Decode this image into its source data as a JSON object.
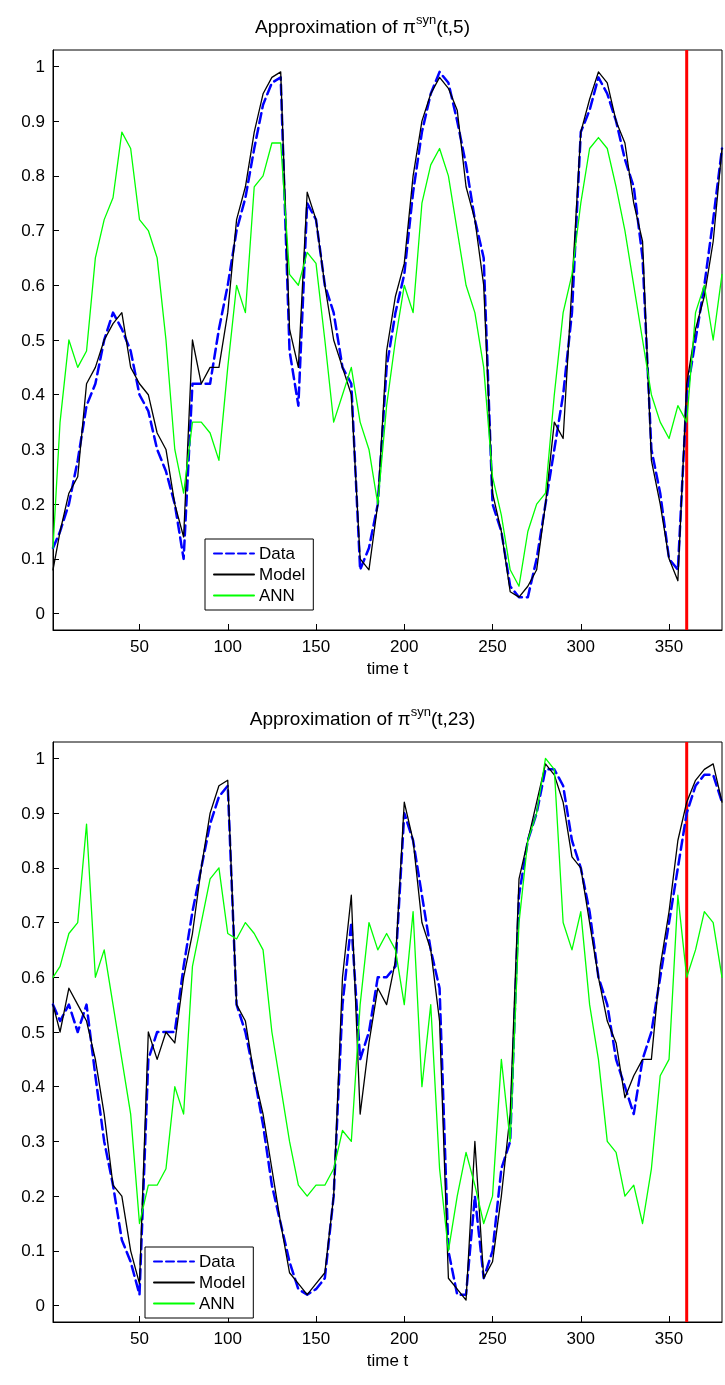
{
  "chart_data": [
    {
      "type": "line",
      "title": "Approximation of π$^{syn}$(t,5)",
      "xlabel": "time t",
      "xlim": [
        1,
        380
      ],
      "xticks": [
        50,
        100,
        150,
        200,
        250,
        300,
        350
      ],
      "ylim": [
        -0.03,
        1.03
      ],
      "yticks": [
        0,
        0.1,
        0.2,
        0.3,
        0.4,
        0.5,
        0.6,
        0.7,
        0.8,
        0.9,
        1
      ],
      "grid": false,
      "legend": "bottom left",
      "marker": "none",
      "x": [
        1,
        5,
        10,
        15,
        20,
        25,
        30,
        35,
        40,
        45,
        50,
        55,
        60,
        65,
        70,
        75,
        80,
        85,
        90,
        95,
        100,
        105,
        110,
        115,
        120,
        125,
        130,
        135,
        140,
        145,
        150,
        155,
        160,
        165,
        170,
        175,
        180,
        185,
        190,
        195,
        200,
        205,
        210,
        215,
        220,
        225,
        230,
        235,
        240,
        245,
        250,
        255,
        260,
        265,
        270,
        275,
        280,
        285,
        290,
        295,
        300,
        305,
        310,
        315,
        320,
        325,
        330,
        335,
        340,
        345,
        350,
        355,
        360,
        365,
        370,
        375,
        380
      ],
      "series": [
        {
          "name": "Data",
          "color": "#0000ff",
          "line_style": "dashed",
          "values": [
            0.12,
            0.15,
            0.2,
            0.28,
            0.38,
            0.42,
            0.5,
            0.55,
            0.52,
            0.48,
            0.4,
            0.37,
            0.3,
            0.26,
            0.2,
            0.1,
            0.42,
            0.42,
            0.42,
            0.52,
            0.6,
            0.7,
            0.76,
            0.85,
            0.93,
            0.97,
            0.98,
            0.48,
            0.38,
            0.75,
            0.72,
            0.6,
            0.55,
            0.45,
            0.42,
            0.08,
            0.12,
            0.2,
            0.45,
            0.55,
            0.62,
            0.77,
            0.88,
            0.95,
            0.99,
            0.97,
            0.9,
            0.82,
            0.72,
            0.65,
            0.2,
            0.15,
            0.05,
            0.03,
            0.03,
            0.1,
            0.2,
            0.3,
            0.4,
            0.55,
            0.88,
            0.92,
            0.98,
            0.95,
            0.9,
            0.83,
            0.78,
            0.65,
            0.3,
            0.22,
            0.1,
            0.08,
            0.4,
            0.5,
            0.6,
            0.72,
            0.85
          ]
        },
        {
          "name": "Model",
          "color": "#000000",
          "line_style": "solid",
          "values": [
            0.08,
            0.15,
            0.22,
            0.25,
            0.42,
            0.45,
            0.5,
            0.53,
            0.55,
            0.45,
            0.42,
            0.4,
            0.33,
            0.3,
            0.2,
            0.14,
            0.5,
            0.42,
            0.45,
            0.45,
            0.55,
            0.72,
            0.78,
            0.88,
            0.95,
            0.98,
            0.99,
            0.52,
            0.45,
            0.77,
            0.72,
            0.6,
            0.5,
            0.45,
            0.4,
            0.1,
            0.08,
            0.2,
            0.48,
            0.58,
            0.64,
            0.8,
            0.9,
            0.95,
            0.98,
            0.96,
            0.92,
            0.78,
            0.72,
            0.6,
            0.22,
            0.15,
            0.04,
            0.03,
            0.05,
            0.08,
            0.2,
            0.35,
            0.32,
            0.6,
            0.88,
            0.94,
            0.99,
            0.97,
            0.9,
            0.86,
            0.75,
            0.68,
            0.28,
            0.2,
            0.1,
            0.06,
            0.42,
            0.52,
            0.58,
            0.68,
            0.85
          ]
        },
        {
          "name": "ANN",
          "color": "#00ff00",
          "line_style": "solid",
          "values": [
            0.12,
            0.35,
            0.5,
            0.45,
            0.48,
            0.65,
            0.72,
            0.76,
            0.88,
            0.85,
            0.72,
            0.7,
            0.65,
            0.5,
            0.3,
            0.22,
            0.35,
            0.35,
            0.33,
            0.28,
            0.45,
            0.6,
            0.55,
            0.78,
            0.8,
            0.86,
            0.86,
            0.62,
            0.6,
            0.66,
            0.64,
            0.5,
            0.35,
            0.4,
            0.45,
            0.35,
            0.3,
            0.2,
            0.38,
            0.5,
            0.6,
            0.55,
            0.75,
            0.82,
            0.85,
            0.8,
            0.7,
            0.6,
            0.55,
            0.45,
            0.25,
            0.18,
            0.08,
            0.05,
            0.15,
            0.2,
            0.22,
            0.4,
            0.55,
            0.62,
            0.75,
            0.85,
            0.87,
            0.85,
            0.78,
            0.7,
            0.6,
            0.5,
            0.4,
            0.35,
            0.32,
            0.38,
            0.35,
            0.55,
            0.6,
            0.5,
            0.62
          ]
        }
      ],
      "ref_lines": [
        {
          "axis": "x",
          "value": 360,
          "color": "#ff0000"
        }
      ]
    },
    {
      "type": "line",
      "title": "Approximation of π$^{syn}$(t,23)",
      "xlabel": "time t",
      "xlim": [
        1,
        380
      ],
      "xticks": [
        50,
        100,
        150,
        200,
        250,
        300,
        350
      ],
      "ylim": [
        -0.03,
        1.03
      ],
      "yticks": [
        0,
        0.1,
        0.2,
        0.3,
        0.4,
        0.5,
        0.6,
        0.7,
        0.8,
        0.9,
        1
      ],
      "grid": false,
      "legend": "bottom left",
      "marker": "none",
      "x": [
        1,
        5,
        10,
        15,
        20,
        25,
        30,
        35,
        40,
        45,
        50,
        55,
        60,
        65,
        70,
        75,
        80,
        85,
        90,
        95,
        100,
        105,
        110,
        115,
        120,
        125,
        130,
        135,
        140,
        145,
        150,
        155,
        160,
        165,
        170,
        175,
        180,
        185,
        190,
        195,
        200,
        205,
        210,
        215,
        220,
        225,
        230,
        235,
        240,
        245,
        250,
        255,
        260,
        265,
        270,
        275,
        280,
        285,
        290,
        295,
        300,
        305,
        310,
        315,
        320,
        325,
        330,
        335,
        340,
        345,
        350,
        355,
        360,
        365,
        370,
        375,
        380
      ],
      "series": [
        {
          "name": "Data",
          "color": "#0000ff",
          "line_style": "dashed",
          "values": [
            0.55,
            0.52,
            0.55,
            0.5,
            0.55,
            0.42,
            0.3,
            0.22,
            0.12,
            0.08,
            0.02,
            0.45,
            0.5,
            0.5,
            0.5,
            0.62,
            0.72,
            0.8,
            0.88,
            0.93,
            0.95,
            0.55,
            0.5,
            0.42,
            0.33,
            0.22,
            0.15,
            0.08,
            0.03,
            0.02,
            0.03,
            0.05,
            0.2,
            0.55,
            0.7,
            0.45,
            0.5,
            0.6,
            0.6,
            0.62,
            0.9,
            0.85,
            0.75,
            0.65,
            0.58,
            0.1,
            0.02,
            0.02,
            0.2,
            0.05,
            0.1,
            0.25,
            0.3,
            0.75,
            0.85,
            0.9,
            0.98,
            0.98,
            0.95,
            0.85,
            0.8,
            0.72,
            0.6,
            0.55,
            0.45,
            0.4,
            0.35,
            0.45,
            0.5,
            0.6,
            0.7,
            0.8,
            0.9,
            0.95,
            0.97,
            0.97,
            0.92
          ]
        },
        {
          "name": "Model",
          "color": "#000000",
          "line_style": "solid",
          "values": [
            0.55,
            0.5,
            0.58,
            0.55,
            0.52,
            0.45,
            0.35,
            0.22,
            0.2,
            0.1,
            0.04,
            0.5,
            0.45,
            0.5,
            0.48,
            0.6,
            0.68,
            0.8,
            0.9,
            0.95,
            0.96,
            0.55,
            0.52,
            0.42,
            0.35,
            0.25,
            0.15,
            0.06,
            0.04,
            0.02,
            0.04,
            0.06,
            0.2,
            0.6,
            0.75,
            0.35,
            0.48,
            0.58,
            0.55,
            0.63,
            0.92,
            0.85,
            0.7,
            0.65,
            0.52,
            0.05,
            0.03,
            0.01,
            0.3,
            0.05,
            0.08,
            0.2,
            0.35,
            0.78,
            0.85,
            0.92,
            0.99,
            0.97,
            0.92,
            0.82,
            0.8,
            0.7,
            0.6,
            0.52,
            0.48,
            0.38,
            0.42,
            0.45,
            0.45,
            0.62,
            0.72,
            0.85,
            0.92,
            0.96,
            0.98,
            0.99,
            0.92
          ]
        },
        {
          "name": "ANN",
          "color": "#00ff00",
          "line_style": "solid",
          "values": [
            0.6,
            0.62,
            0.68,
            0.7,
            0.88,
            0.6,
            0.65,
            0.55,
            0.45,
            0.35,
            0.15,
            0.22,
            0.22,
            0.25,
            0.4,
            0.35,
            0.62,
            0.7,
            0.78,
            0.8,
            0.68,
            0.67,
            0.7,
            0.68,
            0.65,
            0.5,
            0.4,
            0.3,
            0.22,
            0.2,
            0.22,
            0.22,
            0.25,
            0.32,
            0.3,
            0.55,
            0.7,
            0.65,
            0.68,
            0.65,
            0.55,
            0.72,
            0.4,
            0.55,
            0.25,
            0.1,
            0.2,
            0.28,
            0.22,
            0.15,
            0.2,
            0.45,
            0.3,
            0.7,
            0.85,
            0.9,
            1.0,
            0.98,
            0.7,
            0.65,
            0.72,
            0.55,
            0.45,
            0.3,
            0.28,
            0.2,
            0.22,
            0.15,
            0.25,
            0.42,
            0.45,
            0.75,
            0.6,
            0.65,
            0.72,
            0.7,
            0.6
          ]
        }
      ],
      "ref_lines": [
        {
          "axis": "x",
          "value": 360,
          "color": "#ff0000"
        }
      ]
    }
  ]
}
